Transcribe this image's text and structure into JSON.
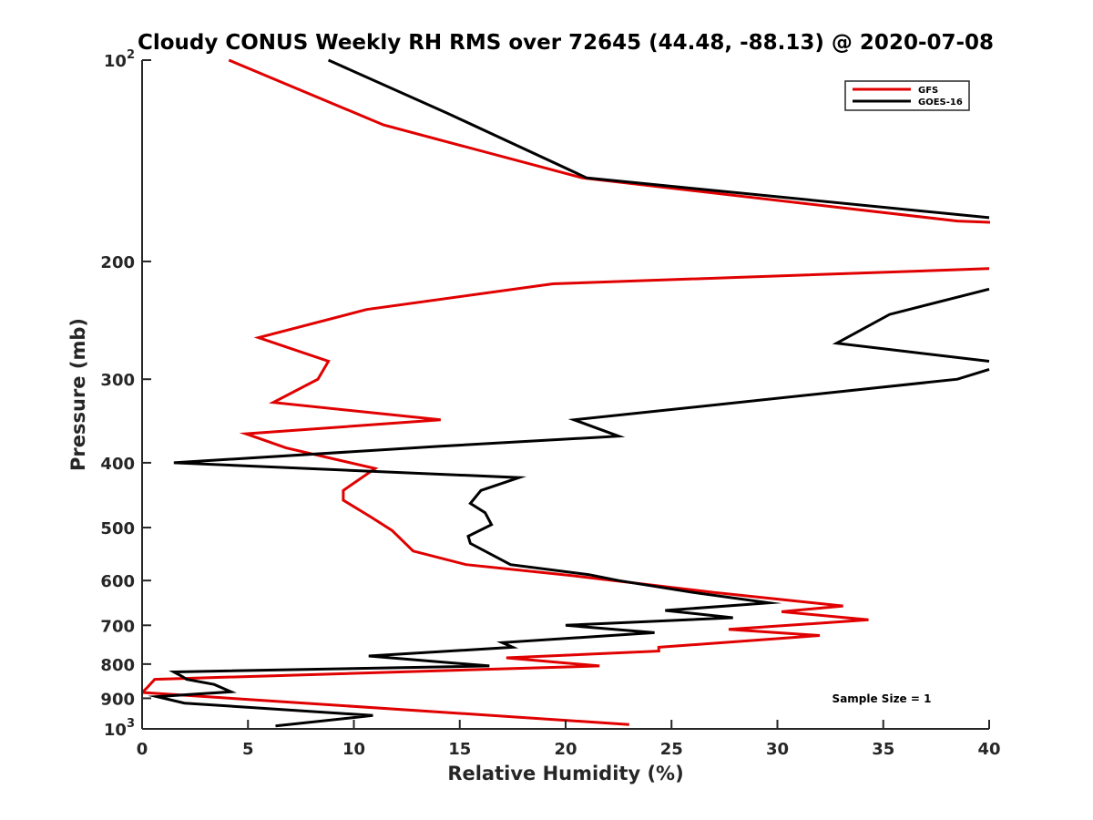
{
  "chart_data": {
    "type": "line",
    "title": "Cloudy CONUS Weekly RH RMS over 72645 (44.48, -88.13) @ 2020-07-08",
    "xlabel": "Relative Humidity (%)",
    "ylabel": "Pressure (mb)",
    "xlim": [
      0,
      40
    ],
    "ylim": [
      100,
      1000
    ],
    "y_scale": "log",
    "y_reversed": true,
    "grid": false,
    "legend_position": "top-right",
    "x_ticks": [
      0,
      5,
      10,
      15,
      20,
      25,
      30,
      35,
      40
    ],
    "x_tick_labels": [
      "0",
      "5",
      "10",
      "15",
      "20",
      "25",
      "30",
      "35",
      "40"
    ],
    "y_ticks": [
      100,
      200,
      300,
      400,
      500,
      600,
      700,
      800,
      900,
      1000
    ],
    "y_tick_labels": [
      {
        "base": "10",
        "exp": "2"
      },
      {
        "base": "200",
        "exp": ""
      },
      {
        "base": "300",
        "exp": ""
      },
      {
        "base": "400",
        "exp": ""
      },
      {
        "base": "500",
        "exp": ""
      },
      {
        "base": "600",
        "exp": ""
      },
      {
        "base": "700",
        "exp": ""
      },
      {
        "base": "800",
        "exp": ""
      },
      {
        "base": "900",
        "exp": ""
      },
      {
        "base": "10",
        "exp": "3"
      }
    ],
    "annotation": "Sample Size = 1",
    "series": [
      {
        "name": "GFS",
        "color": "#e00000",
        "points": [
          [
            4.1,
            100
          ],
          [
            11.4,
            125
          ],
          [
            20.8,
            150
          ],
          [
            38.5,
            174
          ],
          [
            40.5,
            175
          ],
          [
            null,
            null
          ],
          [
            40.0,
            205
          ],
          [
            19.4,
            216
          ],
          [
            10.6,
            236
          ],
          [
            5.5,
            260
          ],
          [
            8.8,
            282
          ],
          [
            8.3,
            300
          ],
          [
            6.2,
            325
          ],
          [
            14.1,
            345
          ],
          [
            4.9,
            362
          ],
          [
            6.8,
            380
          ],
          [
            11.0,
            408
          ],
          [
            9.5,
            440
          ],
          [
            9.5,
            455
          ],
          [
            10.8,
            482
          ],
          [
            11.8,
            505
          ],
          [
            12.8,
            542
          ],
          [
            15.3,
            568
          ],
          [
            20.3,
            590
          ],
          [
            27.0,
            625
          ],
          [
            33.1,
            655
          ],
          [
            30.2,
            668
          ],
          [
            34.3,
            687
          ],
          [
            27.7,
            710
          ],
          [
            32.0,
            725
          ],
          [
            24.4,
            755
          ],
          [
            24.4,
            765
          ],
          [
            17.2,
            783
          ],
          [
            21.6,
            805
          ],
          [
            0.6,
            843
          ],
          [
            0.2,
            870
          ],
          [
            0.0,
            882
          ],
          [
            23.0,
            985
          ]
        ]
      },
      {
        "name": "GOES-16",
        "color": "#000000",
        "points": [
          [
            8.8,
            100
          ],
          [
            14.4,
            120
          ],
          [
            21.0,
            150
          ],
          [
            40.0,
            172
          ],
          [
            null,
            null
          ],
          [
            40.0,
            220
          ],
          [
            35.3,
            240
          ],
          [
            32.8,
            265
          ],
          [
            40.0,
            282
          ],
          [
            null,
            null
          ],
          [
            40.0,
            290
          ],
          [
            38.5,
            300
          ],
          [
            20.4,
            345
          ],
          [
            22.5,
            365
          ],
          [
            14.0,
            378
          ],
          [
            1.5,
            400
          ],
          [
            17.8,
            421
          ],
          [
            16.0,
            440
          ],
          [
            15.5,
            460
          ],
          [
            16.2,
            475
          ],
          [
            16.5,
            495
          ],
          [
            15.4,
            515
          ],
          [
            15.5,
            528
          ],
          [
            17.4,
            568
          ],
          [
            21.1,
            588
          ],
          [
            22.5,
            600
          ],
          [
            26.0,
            625
          ],
          [
            29.6,
            648
          ],
          [
            24.7,
            665
          ],
          [
            27.9,
            682
          ],
          [
            20.0,
            700
          ],
          [
            24.2,
            718
          ],
          [
            17.0,
            743
          ],
          [
            17.5,
            755
          ],
          [
            10.7,
            778
          ],
          [
            16.4,
            805
          ],
          [
            1.5,
            822
          ],
          [
            1.9,
            835
          ],
          [
            2.1,
            843
          ],
          [
            3.4,
            858
          ],
          [
            4.2,
            880
          ],
          [
            0.7,
            895
          ],
          [
            2.0,
            915
          ],
          [
            10.9,
            955
          ],
          [
            6.3,
            990
          ]
        ]
      }
    ]
  }
}
